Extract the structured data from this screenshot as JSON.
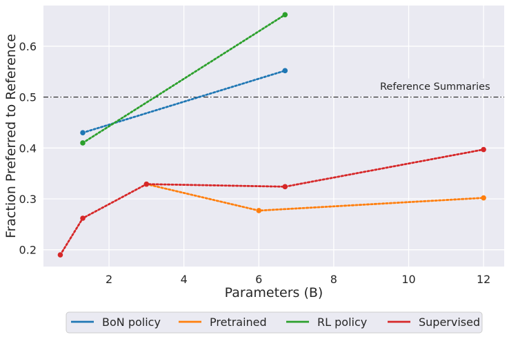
{
  "chart_data": {
    "type": "line",
    "xlabel": "Parameters (B)",
    "ylabel": "Fraction Preferred to Reference",
    "x_tick_labels": [
      "2",
      "4",
      "6",
      "8",
      "10",
      "12"
    ],
    "y_tick_labels": [
      "0.2",
      "0.3",
      "0.4",
      "0.5",
      "0.6"
    ],
    "ylim": [
      0.167,
      0.68
    ],
    "grid": true,
    "legend_position": "bottom, outside plot",
    "reference": {
      "y": 0.5,
      "label": "Reference Summaries"
    },
    "series": [
      {
        "name": "BoN policy",
        "color": "#1f77b4",
        "points": [
          {
            "x": 1.3,
            "y": 0.43
          },
          {
            "x": 6.7,
            "y": 0.552
          }
        ]
      },
      {
        "name": "Pretrained",
        "color": "#ff7f0e",
        "points": [
          {
            "x": 3.0,
            "y": 0.329
          },
          {
            "x": 6.0,
            "y": 0.277
          },
          {
            "x": 12.0,
            "y": 0.302
          }
        ]
      },
      {
        "name": "RL policy",
        "color": "#2ca02c",
        "points": [
          {
            "x": 1.3,
            "y": 0.41
          },
          {
            "x": 6.7,
            "y": 0.662
          }
        ]
      },
      {
        "name": "Supervised",
        "color": "#d62728",
        "points": [
          {
            "x": 0.7,
            "y": 0.19
          },
          {
            "x": 1.3,
            "y": 0.262
          },
          {
            "x": 3.0,
            "y": 0.329
          },
          {
            "x": 6.7,
            "y": 0.324
          },
          {
            "x": 12.0,
            "y": 0.397
          }
        ]
      }
    ]
  }
}
